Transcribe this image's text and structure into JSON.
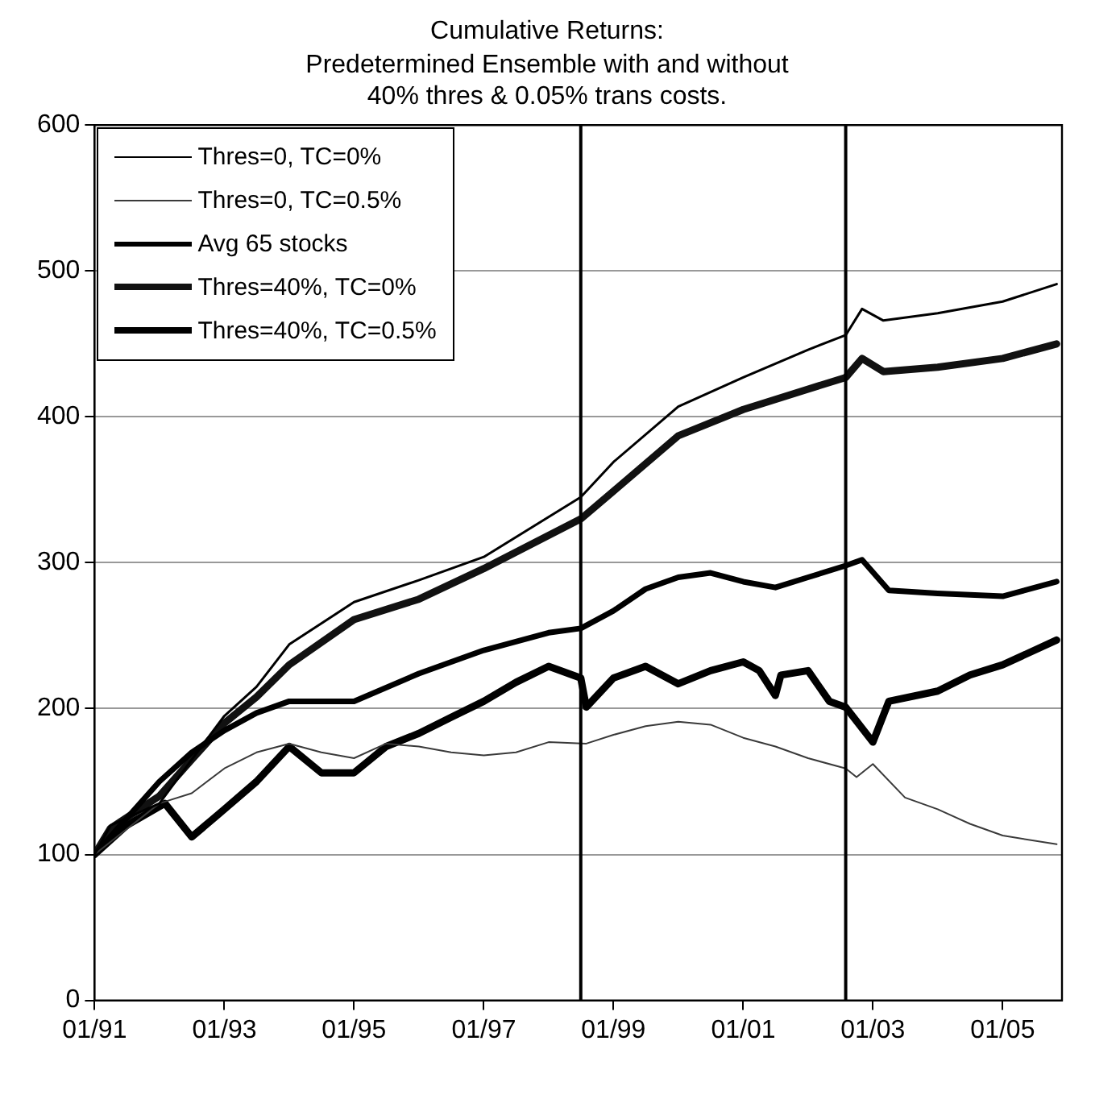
{
  "chart_data": {
    "type": "line",
    "title": "Cumulative Returns:",
    "subtitle": "Predetermined Ensemble with and without\n40% thres & 0.05% trans costs.",
    "xlim": [
      "1991-01",
      "2005-12"
    ],
    "xticks": [
      {
        "value": "1991-01",
        "label": "01/91"
      },
      {
        "value": "1993-01",
        "label": "01/93"
      },
      {
        "value": "1995-01",
        "label": "01/95"
      },
      {
        "value": "1997-01",
        "label": "01/97"
      },
      {
        "value": "1999-01",
        "label": "01/99"
      },
      {
        "value": "2001-01",
        "label": "01/01"
      },
      {
        "value": "2003-01",
        "label": "01/03"
      },
      {
        "value": "2005-01",
        "label": "01/05"
      }
    ],
    "ylim": [
      0,
      600
    ],
    "yticks": [
      0,
      100,
      200,
      300,
      400,
      500,
      600
    ],
    "grid": "y",
    "legend": "top left",
    "line_style": "solid",
    "marker": "none",
    "ref_lines": [
      {
        "axis": "x",
        "value": "1998-07",
        "color": "#000000"
      },
      {
        "axis": "x",
        "value": "2002-08",
        "color": "#000000"
      }
    ],
    "series": [
      {
        "name": "Thres=0, TC=0%",
        "color": "#000000",
        "x": [
          "1991-01",
          "1991-04",
          "1992-01",
          "1992-07",
          "1993-01",
          "1993-07",
          "1994-01",
          "1995-01",
          "1996-01",
          "1997-01",
          "1998-07",
          "1999-01",
          "2000-01",
          "2001-01",
          "2002-01",
          "2002-08",
          "2002-11",
          "2003-03",
          "2004-01",
          "2005-01",
          "2005-11"
        ],
        "values": [
          100,
          120,
          135,
          165,
          195,
          215,
          244,
          273,
          288,
          304,
          345,
          369,
          407,
          427,
          446,
          456,
          474,
          466,
          471,
          479,
          491
        ]
      },
      {
        "name": "Thres=0, TC=0.5%",
        "color": "#3a3a3a",
        "x": [
          "1991-01",
          "1992-01",
          "1992-07",
          "1993-01",
          "1993-07",
          "1994-01",
          "1994-07",
          "1995-01",
          "1995-07",
          "1996-01",
          "1996-07",
          "1997-01",
          "1997-07",
          "1998-01",
          "1998-08",
          "1999-01",
          "1999-07",
          "2000-01",
          "2000-07",
          "2001-01",
          "2001-07",
          "2002-01",
          "2002-08",
          "2002-10",
          "2003-01",
          "2003-07",
          "2004-01",
          "2004-07",
          "2005-01",
          "2005-11"
        ],
        "values": [
          100,
          135,
          142,
          159,
          170,
          176,
          170,
          166,
          176,
          174,
          170,
          168,
          170,
          177,
          176,
          182,
          188,
          191,
          189,
          180,
          174,
          166,
          159,
          153,
          162,
          139,
          131,
          121,
          113,
          107
        ]
      },
      {
        "name": "Avg 65 stocks",
        "color": "#000000",
        "x": [
          "1991-01",
          "1992-01",
          "1992-07",
          "1993-01",
          "1993-07",
          "1994-01",
          "1995-01",
          "1996-01",
          "1997-01",
          "1998-01",
          "1998-07",
          "1999-01",
          "1999-07",
          "2000-01",
          "2000-07",
          "2001-01",
          "2001-07",
          "2002-01",
          "2002-08",
          "2002-11",
          "2003-04",
          "2004-01",
          "2005-01",
          "2005-11"
        ],
        "values": [
          100,
          150,
          170,
          185,
          197,
          205,
          205,
          224,
          240,
          252,
          255,
          267,
          282,
          290,
          293,
          287,
          283,
          290,
          298,
          302,
          281,
          279,
          277,
          287
        ]
      },
      {
        "name": "Thres=40%, TC=0%",
        "color": "#111111",
        "x": [
          "1991-01",
          "1991-04",
          "1992-01",
          "1992-07",
          "1993-01",
          "1993-07",
          "1994-01",
          "1995-01",
          "1996-01",
          "1997-01",
          "1998-07",
          "1999-01",
          "2000-01",
          "2001-01",
          "2002-01",
          "2002-08",
          "2002-11",
          "2003-03",
          "2004-01",
          "2005-01",
          "2005-11"
        ],
        "values": [
          100,
          118,
          140,
          165,
          190,
          208,
          230,
          261,
          275,
          296,
          330,
          349,
          387,
          405,
          419,
          427,
          440,
          431,
          434,
          440,
          450
        ]
      },
      {
        "name": "Thres=40%, TC=0.5%",
        "color": "#000000",
        "x": [
          "1991-01",
          "1991-07",
          "1992-02",
          "1992-07",
          "1993-01",
          "1993-07",
          "1994-01",
          "1994-07",
          "1995-01",
          "1995-07",
          "1996-01",
          "1996-07",
          "1997-01",
          "1997-07",
          "1998-01",
          "1998-07",
          "1998-08",
          "1999-01",
          "1999-07",
          "2000-01",
          "2000-07",
          "2001-01",
          "2001-04",
          "2001-07",
          "2001-08",
          "2002-01",
          "2002-05",
          "2002-08",
          "2003-01",
          "2003-04",
          "2004-01",
          "2004-07",
          "2005-01",
          "2005-11"
        ],
        "values": [
          100,
          120,
          135,
          112,
          131,
          150,
          174,
          156,
          156,
          174,
          183,
          194,
          205,
          218,
          229,
          221,
          201,
          221,
          229,
          217,
          226,
          232,
          226,
          209,
          223,
          226,
          205,
          201,
          177,
          205,
          212,
          223,
          230,
          247
        ]
      }
    ]
  }
}
